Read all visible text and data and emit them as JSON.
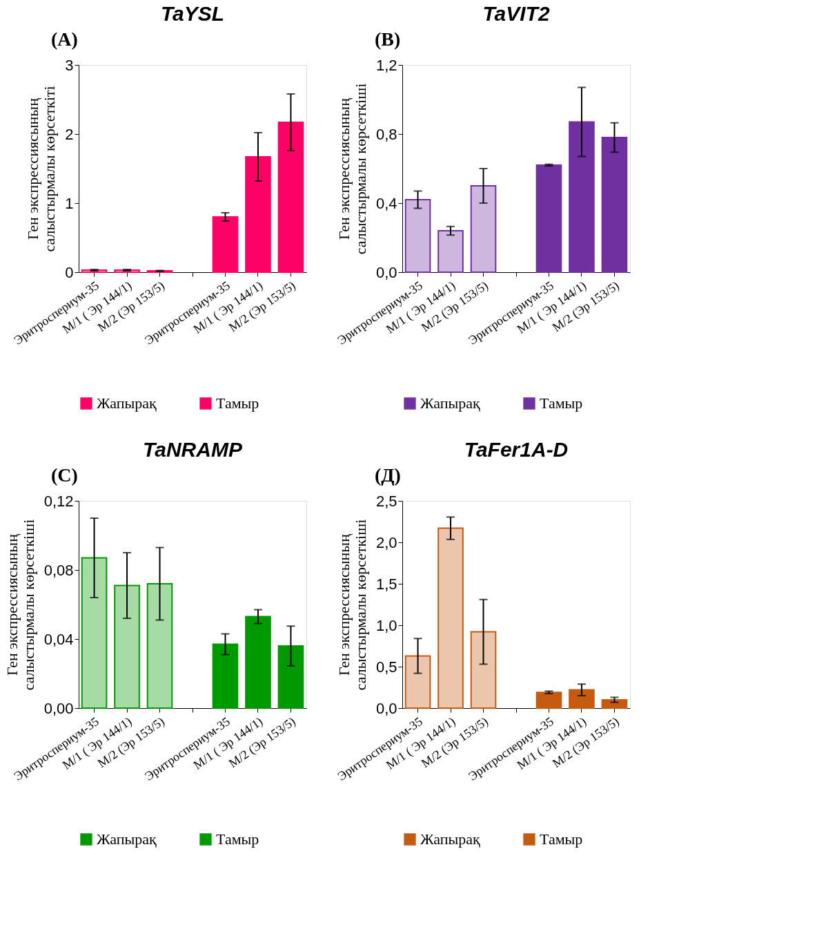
{
  "chart_data": [
    {
      "type": "bar",
      "title": "TaYSL",
      "annotations": [
        "(A)"
      ],
      "ylabel": "Ген  экспрессиясының\nсалыстырмалы көрсеткіті",
      "categories": [
        "Эритроспериум-35",
        "М/1 ( Эр 144/1)",
        "М/2 (Эр 153/5)",
        null,
        "Эритроспериум-35",
        "М/1 ( Эр 144/1)",
        "М/2 (Эр 153/5)"
      ],
      "ylim": [
        0,
        3
      ],
      "yticks": [
        0,
        1,
        2,
        3
      ],
      "legend": "bottom",
      "series": [
        {
          "name": "Жапырақ",
          "color": "#ff0066",
          "values": [
            0.03,
            0.03,
            0.02,
            null,
            null,
            null,
            null
          ],
          "errors": [
            0.01,
            0.01,
            0.005,
            null,
            null,
            null,
            null
          ]
        },
        {
          "name": "Тамыр",
          "color": "#ff0066",
          "values": [
            null,
            null,
            null,
            null,
            0.8,
            1.67,
            2.17
          ],
          "errors": [
            null,
            null,
            null,
            null,
            0.06,
            0.35,
            0.41
          ]
        }
      ]
    },
    {
      "type": "bar",
      "title": "TaVIT2",
      "annotations": [
        "(B)"
      ],
      "ylabel": "Ген  экспрессиясының\nсалыстырмалы көрсеткіші",
      "categories": [
        "Эритроспериум-35",
        "М/1 ( Эр 144/1)",
        "М/2 (Эр 153/5)",
        null,
        "Эритроспериум-35",
        "М/1 ( Эр 144/1)",
        "М/2 (Эр 153/5)"
      ],
      "ylim": [
        0,
        1.2
      ],
      "yticks": [
        {
          "value": 0,
          "label": "0,0"
        },
        {
          "value": 0.4,
          "label": "0,4"
        },
        {
          "value": 0.8,
          "label": "0,8"
        },
        {
          "value": 1.2,
          "label": "1,2"
        }
      ],
      "legend": "bottom",
      "series": [
        {
          "name": "Жапырақ",
          "color": "#7030a0",
          "values": [
            0.42,
            0.24,
            0.5,
            null,
            null,
            null,
            null
          ],
          "errors": [
            0.05,
            0.025,
            0.1,
            null,
            null,
            null,
            null
          ]
        },
        {
          "name": "Тамыр",
          "color": "#7030a0",
          "values": [
            null,
            null,
            null,
            null,
            0.62,
            0.87,
            0.78
          ],
          "errors": [
            null,
            null,
            null,
            null,
            0.005,
            0.2,
            0.085
          ]
        }
      ]
    },
    {
      "type": "bar",
      "title": "TaNRAMP",
      "annotations": [
        "(C)"
      ],
      "ylabel": "Ген экспрессиясының\nсалыстырмалы көрсеткіші",
      "categories": [
        "Эритроспериум-35",
        "М/1 ( Эр 144/1)",
        "М/2 (Эр 153/5)",
        null,
        "Эритроспериум-35",
        "М/1 ( Эр 144/1)",
        "М/2 (Эр 153/5)"
      ],
      "ylim": [
        0,
        0.12
      ],
      "yticks": [
        {
          "value": 0,
          "label": "0,00"
        },
        {
          "value": 0.04,
          "label": "0,04"
        },
        {
          "value": 0.08,
          "label": "0,08"
        },
        {
          "value": 0.12,
          "label": "0,12"
        }
      ],
      "legend": "bottom",
      "series": [
        {
          "name": "Жапырақ",
          "color": "#009900",
          "values": [
            0.087,
            0.071,
            0.072,
            null,
            null,
            null,
            null
          ],
          "errors": [
            0.023,
            0.019,
            0.021,
            null,
            null,
            null,
            null
          ]
        },
        {
          "name": "Тамыр",
          "color": "#009900",
          "values": [
            null,
            null,
            null,
            null,
            0.037,
            0.053,
            0.036
          ],
          "errors": [
            null,
            null,
            null,
            null,
            0.006,
            0.004,
            0.0115
          ]
        }
      ]
    },
    {
      "type": "bar",
      "title": "TaFer1A-D",
      "annotations": [
        "(Д)"
      ],
      "ylabel": "Ген  экспрессиясының\nсалыстырмалы көрсеткіші",
      "categories": [
        "Эритроспериум-35",
        "М/1 ( Эр 144/1)",
        "М/2 (Эр 153/5)",
        null,
        "Эритроспериум-35",
        "М/1 ( Эр 144/1)",
        "М/2 (Эр 153/5)"
      ],
      "ylim": [
        0,
        2.5
      ],
      "yticks": [
        {
          "value": 0,
          "label": "0,0"
        },
        {
          "value": 0.5,
          "label": "0,5"
        },
        {
          "value": 1.0,
          "label": "1,0"
        },
        {
          "value": 1.5,
          "label": "1,5"
        },
        {
          "value": 2.0,
          "label": "2,0"
        },
        {
          "value": 2.5,
          "label": "2,5"
        }
      ],
      "legend": "bottom",
      "series": [
        {
          "name": "Жапырақ",
          "color": "#c55a11",
          "values": [
            0.63,
            2.17,
            0.92,
            null,
            null,
            null,
            null
          ],
          "errors": [
            0.21,
            0.135,
            0.39,
            null,
            null,
            null,
            null
          ]
        },
        {
          "name": "Тамыр",
          "color": "#c55a11",
          "values": [
            null,
            null,
            null,
            null,
            0.19,
            0.22,
            0.1
          ],
          "errors": [
            null,
            null,
            null,
            null,
            0.015,
            0.07,
            0.03
          ]
        }
      ]
    }
  ]
}
